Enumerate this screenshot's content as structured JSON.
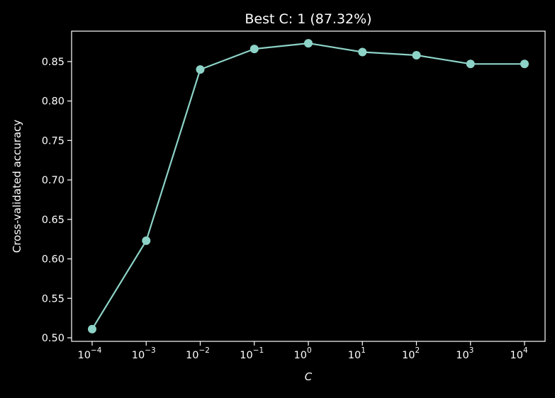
{
  "chart_data": {
    "type": "line",
    "title": "Best C: 1 (87.32%)",
    "xlabel": "C",
    "ylabel": "Cross-validated accuracy",
    "x_scale": "log",
    "x": [
      0.0001,
      0.001,
      0.01,
      0.1,
      1,
      10,
      100,
      1000,
      10000
    ],
    "x_tick_labels": [
      {
        "base": "10",
        "exp": "−4"
      },
      {
        "base": "10",
        "exp": "−3"
      },
      {
        "base": "10",
        "exp": "−2"
      },
      {
        "base": "10",
        "exp": "−1"
      },
      {
        "base": "10",
        "exp": "0"
      },
      {
        "base": "10",
        "exp": "1"
      },
      {
        "base": "10",
        "exp": "2"
      },
      {
        "base": "10",
        "exp": "3"
      },
      {
        "base": "10",
        "exp": "4"
      }
    ],
    "series": [
      {
        "values": [
          0.511,
          0.623,
          0.84,
          0.866,
          0.8732,
          0.862,
          0.858,
          0.847,
          0.847
        ]
      }
    ],
    "yticks": [
      0.5,
      0.55,
      0.6,
      0.65,
      0.7,
      0.75,
      0.8,
      0.85
    ],
    "ytick_labels": [
      "0.50",
      "0.55",
      "0.60",
      "0.65",
      "0.70",
      "0.75",
      "0.80",
      "0.85"
    ],
    "ylim": [
      0.4955,
      0.8885
    ],
    "grid": false,
    "colors": {
      "background": "#000000",
      "foreground": "#ffffff",
      "line": "#8dd3c7"
    }
  }
}
